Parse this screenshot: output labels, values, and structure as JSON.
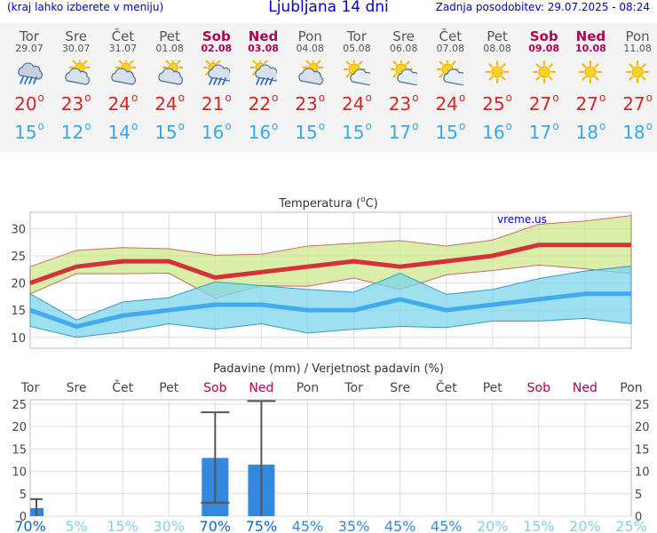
{
  "header": {
    "hint": "(kraj lahko izberete v meniju)",
    "title": "Ljubljana 14 dni",
    "updated": "Zadnja posodobitev: 29.07.2025 - 08:24"
  },
  "degree_symbol": "o",
  "days": [
    {
      "name": "Tor",
      "date": "29.07",
      "icon": "rain-cloud-icon",
      "tmax": "20",
      "tmin": "15",
      "weekend": false
    },
    {
      "name": "Sre",
      "date": "30.07",
      "icon": "partly-cloudy-icon",
      "tmax": "23",
      "tmin": "12",
      "weekend": false
    },
    {
      "name": "Čet",
      "date": "31.07",
      "icon": "partly-cloudy-icon",
      "tmax": "24",
      "tmin": "14",
      "weekend": false
    },
    {
      "name": "Pet",
      "date": "01.08",
      "icon": "partly-cloudy-icon",
      "tmax": "24",
      "tmin": "15",
      "weekend": false
    },
    {
      "name": "Sob",
      "date": "02.08",
      "icon": "sun-cloud-rain-icon",
      "tmax": "21",
      "tmin": "16",
      "weekend": true
    },
    {
      "name": "Ned",
      "date": "03.08",
      "icon": "sun-cloud-rain-icon",
      "tmax": "22",
      "tmin": "16",
      "weekend": true
    },
    {
      "name": "Pon",
      "date": "04.08",
      "icon": "partly-cloudy-icon",
      "tmax": "23",
      "tmin": "15",
      "weekend": false
    },
    {
      "name": "Tor",
      "date": "05.08",
      "icon": "mostly-sunny-icon",
      "tmax": "24",
      "tmin": "15",
      "weekend": false
    },
    {
      "name": "Sre",
      "date": "06.08",
      "icon": "mostly-sunny-icon",
      "tmax": "23",
      "tmin": "17",
      "weekend": false
    },
    {
      "name": "Čet",
      "date": "07.08",
      "icon": "mostly-sunny-icon",
      "tmax": "24",
      "tmin": "15",
      "weekend": false
    },
    {
      "name": "Pet",
      "date": "08.08",
      "icon": "sun-icon",
      "tmax": "25",
      "tmin": "16",
      "weekend": false
    },
    {
      "name": "Sob",
      "date": "09.08",
      "icon": "sun-icon",
      "tmax": "27",
      "tmin": "17",
      "weekend": true
    },
    {
      "name": "Ned",
      "date": "10.08",
      "icon": "sun-icon",
      "tmax": "27",
      "tmin": "18",
      "weekend": true
    },
    {
      "name": "Pon",
      "date": "11.08",
      "icon": "sun-icon",
      "tmax": "27",
      "tmin": "18",
      "weekend": false
    }
  ],
  "colors": {
    "max": "#dd2222",
    "min": "#33aaee",
    "weekend": "#b00050",
    "bar": "#3388dd",
    "title": "#0000cc"
  },
  "chart_data": [
    {
      "type": "line",
      "title": "Temperatura (",
      "title_unit": "C)",
      "watermark": "vreme.us",
      "ylim": [
        8,
        33
      ],
      "yticks": [
        10,
        15,
        20,
        25,
        30
      ],
      "x": [
        "29.07",
        "30.07",
        "31.07",
        "01.08",
        "02.08",
        "03.08",
        "04.08",
        "05.08",
        "06.08",
        "07.08",
        "08.08",
        "09.08",
        "10.08",
        "11.08"
      ],
      "series": [
        {
          "values": [
            20,
            23,
            24,
            24,
            21,
            22,
            23,
            24,
            23,
            24,
            25,
            27,
            27,
            27
          ]
        },
        {
          "values": [
            23,
            26,
            26.5,
            26.3,
            25.1,
            25.3,
            26.8,
            27.3,
            27.8,
            26.8,
            27.9,
            30.8,
            31.4,
            32.4
          ]
        },
        {
          "values": [
            18,
            21.7,
            21.7,
            21.8,
            17.2,
            19.5,
            19.4,
            20.9,
            18.8,
            21.5,
            22.3,
            23.3,
            22.6,
            21.7
          ]
        },
        {
          "values": [
            15,
            12,
            14,
            15,
            16,
            16,
            15,
            15,
            17,
            15,
            16,
            17,
            18,
            18
          ]
        },
        {
          "values": [
            18,
            13.2,
            16.5,
            17.3,
            20.2,
            19.5,
            18.8,
            18.3,
            21.8,
            17.9,
            18.8,
            20.8,
            22.2,
            23.1
          ]
        },
        {
          "values": [
            12,
            10,
            11,
            12.5,
            11.5,
            12.5,
            10.8,
            11.5,
            12,
            11.8,
            13,
            13,
            13.5,
            12.5
          ]
        }
      ],
      "grid": true
    },
    {
      "type": "bar",
      "title": "Padavine (mm) / Verjetnost padavin (%)",
      "categories": [
        "Tor",
        "Sre",
        "Čet",
        "Pet",
        "Sob",
        "Ned",
        "Pon",
        "Tor",
        "Sre",
        "Čet",
        "Pet",
        "Sob",
        "Ned",
        "Pon"
      ],
      "weekend": [
        false,
        false,
        false,
        false,
        true,
        true,
        false,
        false,
        false,
        false,
        false,
        true,
        true,
        false
      ],
      "values": [
        1.8,
        0,
        0,
        0,
        13,
        11.5,
        0,
        0,
        0,
        0,
        0,
        0,
        0,
        0
      ],
      "range": [
        [
          0,
          3.8
        ],
        null,
        null,
        null,
        [
          3,
          23.2
        ],
        [
          0,
          25.7
        ],
        null,
        null,
        null,
        null,
        null,
        null,
        null,
        null
      ],
      "probability": [
        "70%",
        "5%",
        "15%",
        "30%",
        "70%",
        "75%",
        "45%",
        "35%",
        "45%",
        "45%",
        "20%",
        "15%",
        "20%",
        "25%"
      ],
      "probability_num": [
        70,
        5,
        15,
        30,
        70,
        75,
        45,
        35,
        45,
        45,
        20,
        15,
        20,
        25
      ],
      "ylim": [
        0,
        26
      ],
      "yticks": [
        0,
        5,
        10,
        15,
        20,
        25
      ],
      "grid": true
    }
  ]
}
